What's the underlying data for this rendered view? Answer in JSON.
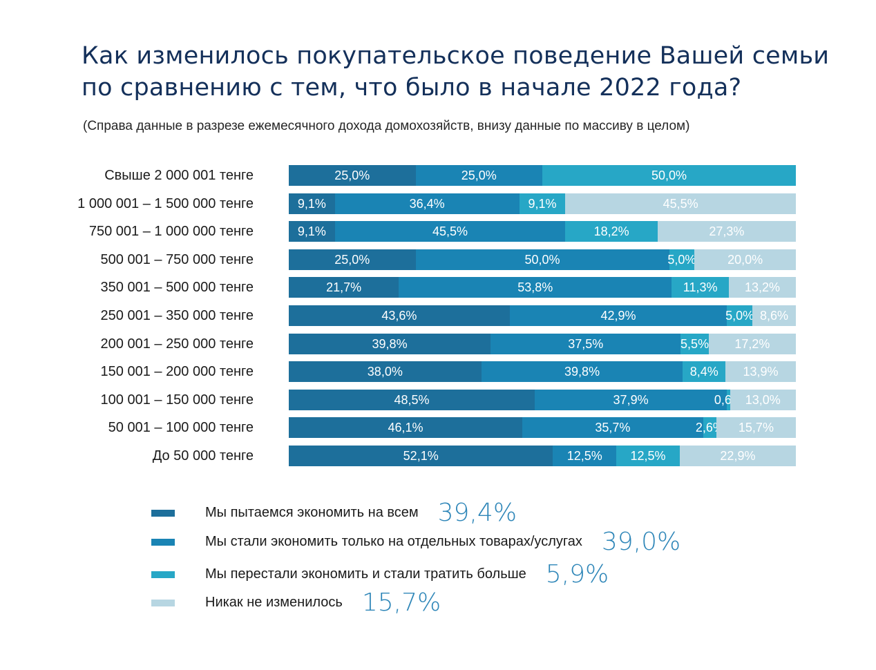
{
  "title_line1": "Как изменилось покупательское поведение Вашей семьи",
  "title_line2": "по сравнению с тем, что было в начале 2022 года?",
  "subtitle": "(Справа данные в разрезе ежемесячного дохода домохозяйств, внизу данные по массиву в целом)",
  "colors": [
    "#1d6f9b",
    "#1a84b4",
    "#27a7c6",
    "#b7d6e2"
  ],
  "chart_data": {
    "type": "bar",
    "orientation": "horizontal",
    "stacked": true,
    "normalized": true,
    "categories": [
      "Свыше 2 000 001 тенге",
      "1 000 001 – 1 500 000 тенге",
      "750 001 – 1 000 000 тенге",
      "500 001 – 750 000 тенге",
      "350 001 – 500 000 тенге",
      "250 001 – 350 000 тенге",
      "200 001 – 250 000 тенге",
      "150 001 – 200 000 тенге",
      "100 001 – 150 000 тенге",
      "50 001 – 100 000 тенге",
      "До 50 000 тенге"
    ],
    "series": [
      {
        "name": "Мы пытаемся экономить на всем",
        "values": [
          25.0,
          9.1,
          9.1,
          25.0,
          21.7,
          43.6,
          39.8,
          38.0,
          48.5,
          46.1,
          52.1
        ],
        "labels": [
          "25,0%",
          "9,1%",
          "9,1%",
          "25,0%",
          "21,7%",
          "43,6%",
          "39,8%",
          "38,0%",
          "48,5%",
          "46,1%",
          "52,1%"
        ]
      },
      {
        "name": "Мы стали экономить только на отдельных товарах/услугах",
        "values": [
          25.0,
          36.4,
          45.5,
          50.0,
          53.8,
          42.9,
          37.5,
          39.8,
          37.9,
          35.7,
          12.5
        ],
        "labels": [
          "25,0%",
          "36,4%",
          "45,5%",
          "50,0%",
          "53,8%",
          "42,9%",
          "37,5%",
          "39,8%",
          "37,9%",
          "35,7%",
          "12,5%"
        ]
      },
      {
        "name": "Мы перестали экономить и стали тратить больше",
        "values": [
          50.0,
          9.1,
          18.2,
          5.0,
          11.3,
          5.0,
          5.5,
          8.4,
          0.6,
          2.6,
          12.5
        ],
        "labels": [
          "50,0%",
          "9,1%",
          "18,2%",
          "5,0%",
          "11,3%",
          "5,0%",
          "5,5%",
          "8,4%",
          "0,6%",
          "2,6%",
          "12,5%"
        ]
      },
      {
        "name": "Никак не изменилось",
        "values": [
          0,
          45.5,
          27.3,
          20.0,
          13.2,
          8.6,
          17.2,
          13.9,
          13.0,
          15.7,
          22.9
        ],
        "labels": [
          "",
          "45,5%",
          "27,3%",
          "20,0%",
          "13,2%",
          "8,6%",
          "17,2%",
          "13,9%",
          "13,0%",
          "15,7%",
          "22,9%"
        ]
      }
    ],
    "xlim": [
      0,
      100
    ],
    "legend_position": "bottom"
  },
  "legend": [
    {
      "label": "Мы пытаемся экономить на всем",
      "value": "39,4%"
    },
    {
      "label": "Мы стали экономить только на отдельных товарах/услугах",
      "value": "39,0%"
    },
    {
      "label": "Мы перестали экономить и стали тратить больше",
      "value": "5,9%"
    },
    {
      "label": "Никак не изменилось",
      "value": "15,7%"
    }
  ]
}
